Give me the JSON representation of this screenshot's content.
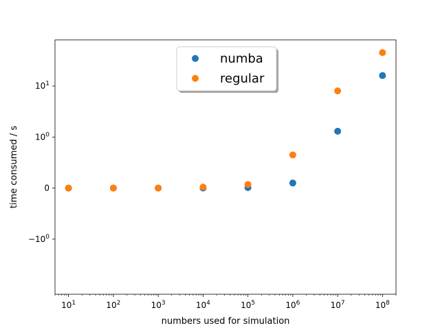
{
  "chart_data": {
    "type": "scatter",
    "title": "",
    "xlabel": "numbers used for simulation",
    "ylabel": "time consumed / s",
    "x_scale": "log",
    "y_scale": "symlog",
    "xlim": [
      5,
      200000000
    ],
    "ylim": [
      -12,
      80
    ],
    "x": [
      10,
      100,
      1000,
      10000,
      100000,
      1000000,
      10000000,
      100000000
    ],
    "x_ticks": [
      {
        "value": 10,
        "exp": "1"
      },
      {
        "value": 100,
        "exp": "2"
      },
      {
        "value": 1000,
        "exp": "3"
      },
      {
        "value": 10000,
        "exp": "4"
      },
      {
        "value": 100000,
        "exp": "5"
      },
      {
        "value": 1000000,
        "exp": "6"
      },
      {
        "value": 10000000,
        "exp": "7"
      },
      {
        "value": 100000000,
        "exp": "8"
      }
    ],
    "y_ticks": [
      {
        "value": -1,
        "mantissa": "−10",
        "exp": "0"
      },
      {
        "value": 0,
        "mantissa": "0",
        "exp": ""
      },
      {
        "value": 1,
        "mantissa": "10",
        "exp": "0"
      },
      {
        "value": 10,
        "mantissa": "10",
        "exp": "1"
      }
    ],
    "grid": false,
    "legend_position": "top-center",
    "series": [
      {
        "name": "numba",
        "color": "#1f77b4",
        "values": [
          0.0001,
          0.0001,
          0.0002,
          0.001,
          0.01,
          0.1,
          1.3,
          16
        ]
      },
      {
        "name": "regular",
        "color": "#ff7f0e",
        "values": [
          0.0001,
          0.0005,
          0.002,
          0.02,
          0.07,
          0.65,
          8,
          45
        ]
      }
    ]
  }
}
